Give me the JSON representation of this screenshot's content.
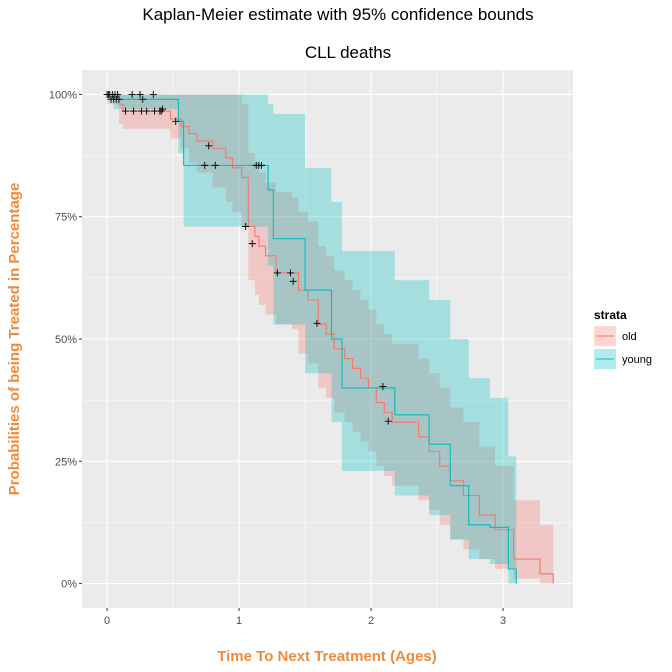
{
  "chart_data": {
    "type": "line",
    "title": "Kaplan-Meier estimate with 95% confidence bounds",
    "subtitle": "CLL deaths",
    "xlabel": "Time To Next Treatment (Ages)",
    "ylabel": "Probabilities of being Treated in Percentage",
    "xlim": [
      -0.19,
      3.53
    ],
    "ylim": [
      -0.05,
      1.05
    ],
    "x_ticks": [
      0,
      1,
      2,
      3
    ],
    "x_tick_labels": [
      "0",
      "1",
      "2",
      "3"
    ],
    "y_ticks": [
      0,
      0.25,
      0.5,
      0.75,
      1
    ],
    "y_tick_labels": [
      "0%",
      "25%",
      "50%",
      "75%",
      "100%"
    ],
    "grid": true,
    "legend": {
      "title": "strata",
      "position": "right",
      "entries": [
        "old",
        "young"
      ]
    },
    "series": [
      {
        "name": "old",
        "color": "#f8766d",
        "fill": "#f8766d",
        "x": [
          0,
          0.09,
          0.12,
          0.42,
          0.48,
          0.56,
          0.62,
          0.68,
          0.8,
          0.9,
          0.95,
          1.02,
          1.07,
          1.12,
          1.15,
          1.2,
          1.28,
          1.4,
          1.45,
          1.52,
          1.6,
          1.66,
          1.72,
          1.8,
          1.86,
          1.92,
          1.98,
          2.04,
          2.1,
          2.16,
          2.24,
          2.36,
          2.44,
          2.52,
          2.6,
          2.7,
          2.82,
          2.94,
          3.08,
          3.28,
          3.38
        ],
        "y": [
          1.0,
          0.98,
          0.966,
          0.966,
          0.95,
          0.935,
          0.92,
          0.905,
          0.89,
          0.87,
          0.85,
          0.83,
          0.73,
          0.71,
          0.69,
          0.67,
          0.635,
          0.635,
          0.6,
          0.58,
          0.53,
          0.51,
          0.48,
          0.46,
          0.44,
          0.42,
          0.4,
          0.37,
          0.35,
          0.33,
          0.33,
          0.3,
          0.27,
          0.24,
          0.21,
          0.18,
          0.14,
          0.11,
          0.05,
          0.02,
          0.0
        ],
        "upper": [
          1.0,
          1.0,
          1.0,
          1.0,
          1.0,
          1.0,
          1.0,
          1.0,
          1.0,
          1.0,
          1.0,
          0.98,
          0.88,
          0.86,
          0.84,
          0.82,
          0.8,
          0.79,
          0.76,
          0.74,
          0.69,
          0.67,
          0.64,
          0.62,
          0.6,
          0.58,
          0.56,
          0.53,
          0.51,
          0.49,
          0.49,
          0.46,
          0.43,
          0.4,
          0.36,
          0.33,
          0.28,
          0.24,
          0.17,
          0.12,
          0.08
        ],
        "lower": [
          0.98,
          0.94,
          0.93,
          0.93,
          0.91,
          0.89,
          0.86,
          0.84,
          0.81,
          0.78,
          0.76,
          0.73,
          0.62,
          0.59,
          0.57,
          0.55,
          0.53,
          0.52,
          0.47,
          0.45,
          0.4,
          0.38,
          0.35,
          0.33,
          0.31,
          0.29,
          0.27,
          0.24,
          0.22,
          0.2,
          0.2,
          0.17,
          0.15,
          0.12,
          0.09,
          0.07,
          0.05,
          0.03,
          0.01,
          0.0,
          0.0
        ],
        "censored": [
          [
            0.0,
            1.0
          ],
          [
            0.02,
            1.0
          ],
          [
            0.04,
            1.0
          ],
          [
            0.06,
            1.0
          ],
          [
            0.08,
            1.0
          ],
          [
            0.14,
            0.966
          ],
          [
            0.2,
            0.966
          ],
          [
            0.26,
            0.966
          ],
          [
            0.3,
            0.966
          ],
          [
            0.36,
            0.966
          ],
          [
            0.4,
            0.966
          ],
          [
            0.41,
            0.966
          ],
          [
            0.77,
            0.895
          ],
          [
            1.05,
            0.73
          ],
          [
            1.1,
            0.695
          ],
          [
            1.29,
            0.635
          ],
          [
            1.39,
            0.635
          ],
          [
            1.41,
            0.618
          ],
          [
            1.59,
            0.532
          ],
          [
            2.09,
            0.403
          ],
          [
            2.13,
            0.332
          ]
        ]
      },
      {
        "name": "young",
        "color": "#00bfc4",
        "fill": "#00bfc4",
        "x": [
          0,
          0.05,
          0.4,
          0.54,
          0.58,
          1.1,
          1.22,
          1.26,
          1.5,
          1.7,
          1.78,
          2.18,
          2.44,
          2.6,
          2.74,
          2.9,
          3.04,
          3.1
        ],
        "y": [
          1.0,
          0.99,
          0.99,
          0.945,
          0.855,
          0.855,
          0.805,
          0.705,
          0.6,
          0.5,
          0.4,
          0.345,
          0.285,
          0.2,
          0.12,
          0.115,
          0.03,
          0.0
        ],
        "upper": [
          1.0,
          1.0,
          1.0,
          1.0,
          1.0,
          1.0,
          0.98,
          0.96,
          0.85,
          0.78,
          0.68,
          0.62,
          0.58,
          0.5,
          0.42,
          0.38,
          0.26,
          0.26
        ],
        "lower": [
          0.99,
          0.97,
          0.97,
          0.88,
          0.73,
          0.73,
          0.65,
          0.53,
          0.43,
          0.33,
          0.23,
          0.18,
          0.14,
          0.09,
          0.05,
          0.04,
          0.0,
          0.0
        ],
        "censored": [
          [
            0.01,
            1.0
          ],
          [
            0.03,
            0.99
          ],
          [
            0.05,
            0.99
          ],
          [
            0.07,
            0.99
          ],
          [
            0.09,
            0.99
          ],
          [
            0.19,
            1.0
          ],
          [
            0.25,
            1.0
          ],
          [
            0.27,
            0.99
          ],
          [
            0.35,
            1.0
          ],
          [
            0.42,
            0.97
          ],
          [
            0.52,
            0.945
          ],
          [
            0.74,
            0.855
          ],
          [
            0.82,
            0.855
          ],
          [
            1.13,
            0.855
          ],
          [
            1.15,
            0.855
          ],
          [
            1.17,
            0.855
          ]
        ]
      }
    ]
  }
}
